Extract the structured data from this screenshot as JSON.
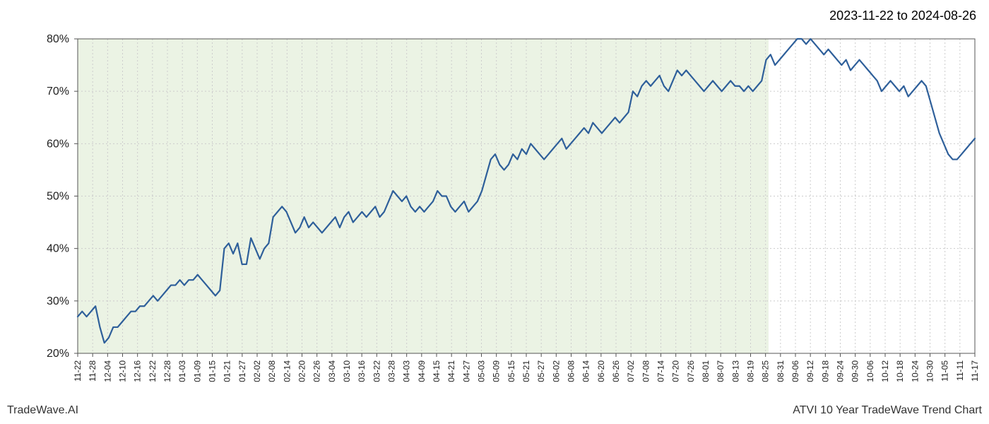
{
  "header": {
    "date_range": "2023-11-22 to 2024-08-26"
  },
  "footer": {
    "brand": "TradeWave.AI",
    "chart_title": "ATVI 10 Year TradeWave Trend Chart"
  },
  "chart": {
    "type": "line",
    "background_color": "#ffffff",
    "plot_border_color": "#555555",
    "plot_border_width": 1,
    "grid_color": "#cccccc",
    "grid_dash": "2,3",
    "highlight_band": {
      "start_label": "11-22",
      "end_label": "08-26",
      "fill_color": "#e2eed9",
      "fill_opacity": 0.7
    },
    "line": {
      "color": "#2e5f9a",
      "width": 2.2
    },
    "y_axis": {
      "label_fontsize": 16,
      "label_color": "#222222",
      "min": 20,
      "max": 80,
      "tick_step": 10,
      "ticks": [
        "20%",
        "30%",
        "40%",
        "50%",
        "60%",
        "70%",
        "80%"
      ]
    },
    "x_axis": {
      "label_fontsize": 12,
      "label_color": "#222222",
      "label_rotation": -90,
      "ticks": [
        "11-22",
        "11-28",
        "12-04",
        "12-10",
        "12-16",
        "12-22",
        "12-28",
        "01-03",
        "01-09",
        "01-15",
        "01-21",
        "01-27",
        "02-02",
        "02-08",
        "02-14",
        "02-20",
        "02-26",
        "03-04",
        "03-10",
        "03-16",
        "03-22",
        "03-28",
        "04-03",
        "04-09",
        "04-15",
        "04-21",
        "04-27",
        "05-03",
        "05-09",
        "05-15",
        "05-21",
        "05-27",
        "06-02",
        "06-08",
        "06-14",
        "06-20",
        "06-26",
        "07-02",
        "07-08",
        "07-14",
        "07-20",
        "07-26",
        "08-01",
        "08-07",
        "08-13",
        "08-19",
        "08-25",
        "08-31",
        "09-06",
        "09-12",
        "09-18",
        "09-24",
        "09-30",
        "10-06",
        "10-12",
        "10-18",
        "10-24",
        "10-30",
        "11-05",
        "11-11",
        "11-17"
      ]
    },
    "series": {
      "values": [
        27,
        28,
        27,
        28,
        29,
        25,
        22,
        23,
        25,
        25,
        26,
        27,
        28,
        28,
        29,
        29,
        30,
        31,
        30,
        31,
        32,
        33,
        33,
        34,
        33,
        34,
        34,
        35,
        34,
        33,
        32,
        31,
        32,
        40,
        41,
        39,
        41,
        37,
        37,
        42,
        40,
        38,
        40,
        41,
        46,
        47,
        48,
        47,
        45,
        43,
        44,
        46,
        44,
        45,
        44,
        43,
        44,
        45,
        46,
        44,
        46,
        47,
        45,
        46,
        47,
        46,
        47,
        48,
        46,
        47,
        49,
        51,
        50,
        49,
        50,
        48,
        47,
        48,
        47,
        48,
        49,
        51,
        50,
        50,
        48,
        47,
        48,
        49,
        47,
        48,
        49,
        51,
        54,
        57,
        58,
        56,
        55,
        56,
        58,
        57,
        59,
        58,
        60,
        59,
        58,
        57,
        58,
        59,
        60,
        61,
        59,
        60,
        61,
        62,
        63,
        62,
        64,
        63,
        62,
        63,
        64,
        65,
        64,
        65,
        66,
        70,
        69,
        71,
        72,
        71,
        72,
        73,
        71,
        70,
        72,
        74,
        73,
        74,
        73,
        72,
        71,
        70,
        71,
        72,
        71,
        70,
        71,
        72,
        71,
        71,
        70,
        71,
        70,
        71,
        72,
        76,
        77,
        75,
        76,
        77,
        78,
        79,
        80,
        80,
        79,
        80,
        79,
        78,
        77,
        78,
        77,
        76,
        75,
        76,
        74,
        75,
        76,
        75,
        74,
        73,
        72,
        70,
        71,
        72,
        71,
        70,
        71,
        69,
        70,
        71,
        72,
        71,
        68,
        65,
        62,
        60,
        58,
        57,
        57,
        58,
        59,
        60,
        61
      ]
    }
  }
}
